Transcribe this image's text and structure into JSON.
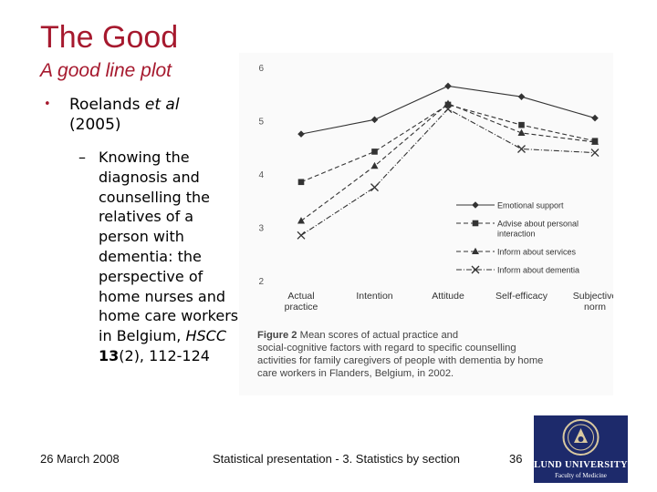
{
  "slide": {
    "title": "The Good",
    "subtitle": "A good line plot",
    "bullet": {
      "author": "Roelands",
      "etal": "et al",
      "year": "(2005)"
    },
    "sub_bullet": {
      "dash": "–",
      "text": "Knowing the diagnosis and counselling the relatives of a person with dementia: the perspective of home nurses and home care workers in",
      "country": "Belgium,",
      "journal": "HSCC",
      "volume": "13",
      "issue_pages": "(2), 112-124"
    }
  },
  "figure": {
    "caption_label": "Figure 2",
    "caption_text": "Mean scores of actual practice and social-cognitive factors with regard to specific counselling activities for family caregivers of people with dementia by home care workers in Flanders, Belgium, in 2002."
  },
  "chart_data": {
    "type": "line",
    "categories": [
      "Actual practice",
      "Intention",
      "Attitude",
      "Self-efficacy",
      "Subjective norm"
    ],
    "category_labels": [
      [
        "Actual",
        "practice"
      ],
      [
        "Intention"
      ],
      [
        "Attitude"
      ],
      [
        "Self-efficacy"
      ],
      [
        "Subjective",
        "norm"
      ]
    ],
    "ylim": [
      2,
      6
    ],
    "yticks": [
      "2",
      "3",
      "4",
      "5",
      "6"
    ],
    "grid": false,
    "legend_position": "lower-right inside plot",
    "series": [
      {
        "name": "Emotional support",
        "values": [
          4.75,
          5.02,
          5.65,
          5.45,
          5.05
        ],
        "marker": "diamond",
        "dash": "solid"
      },
      {
        "name": "Advise about personal interaction",
        "legend_lines": [
          "Advise about personal",
          "interaction"
        ],
        "values": [
          3.85,
          4.42,
          5.3,
          4.92,
          4.62
        ],
        "marker": "square",
        "dash": "dashed"
      },
      {
        "name": "Inform about services",
        "values": [
          3.12,
          4.15,
          5.32,
          4.77,
          4.6
        ],
        "marker": "triangle",
        "dash": "dashed"
      },
      {
        "name": "Inform about dementia",
        "values": [
          2.85,
          3.75,
          5.22,
          4.47,
          4.4
        ],
        "marker": "cross",
        "dash": "dash-dot"
      }
    ]
  },
  "footer": {
    "date": "26 March 2008",
    "center": "Statistical presentation - 3. Statistics by section",
    "page": "36"
  },
  "logo": {
    "line1": "LUND UNIVERSITY",
    "line2": "Faculty of Medicine"
  },
  "colors": {
    "title": "#a6192e",
    "logo_bg": "#1d2a6b",
    "chart_ink": "#333333"
  }
}
